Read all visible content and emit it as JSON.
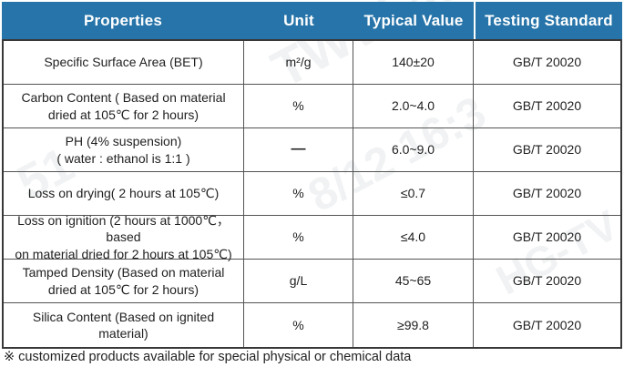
{
  "header": {
    "columns": [
      "Properties",
      "Unit",
      "Typical Value",
      "Testing Standard"
    ]
  },
  "rows": [
    {
      "property": "Specific Surface Area (BET)",
      "unit": "m²/g",
      "value": "140±20",
      "standard": "GB/T 20020"
    },
    {
      "property": "Carbon Content ( Based on material\ndried at 105℃ for 2 hours)",
      "unit": "%",
      "value": "2.0~4.0",
      "standard": "GB/T 20020"
    },
    {
      "property": "PH (4% suspension)\n( water : ethanol is 1:1 )",
      "unit": "—",
      "value": "6.0~9.0",
      "standard": "GB/T 20020"
    },
    {
      "property": "Loss on drying( 2 hours at 105℃)",
      "unit": "%",
      "value": "≤0.7",
      "standard": "GB/T 20020"
    },
    {
      "property": "Loss on ignition (2 hours at 1000℃，based\non material dried for 2 hours at 105℃)",
      "unit": "%",
      "value": "≤4.0",
      "standard": "GB/T 20020"
    },
    {
      "property": "Tamped Density (Based on material\ndried at 105℃ for 2 hours)",
      "unit": "g/L",
      "value": "45~65",
      "standard": "GB/T 20020"
    },
    {
      "property": "Silica Content (Based on ignited material)",
      "unit": "%",
      "value": "≥99.8",
      "standard": "GB/T 20020"
    }
  ],
  "footnote": "※ customized products available for special physical or chemical data",
  "colors": {
    "header_bg": "#2674a9",
    "header_text": "#ffffff",
    "inner_border": "#545454",
    "outer_border": "#383838",
    "body_text": "#1f1f1f"
  },
  "watermark": {
    "fragments": [
      "TWW 86",
      "8/12 16:3",
      "51",
      "HG-TV"
    ]
  }
}
